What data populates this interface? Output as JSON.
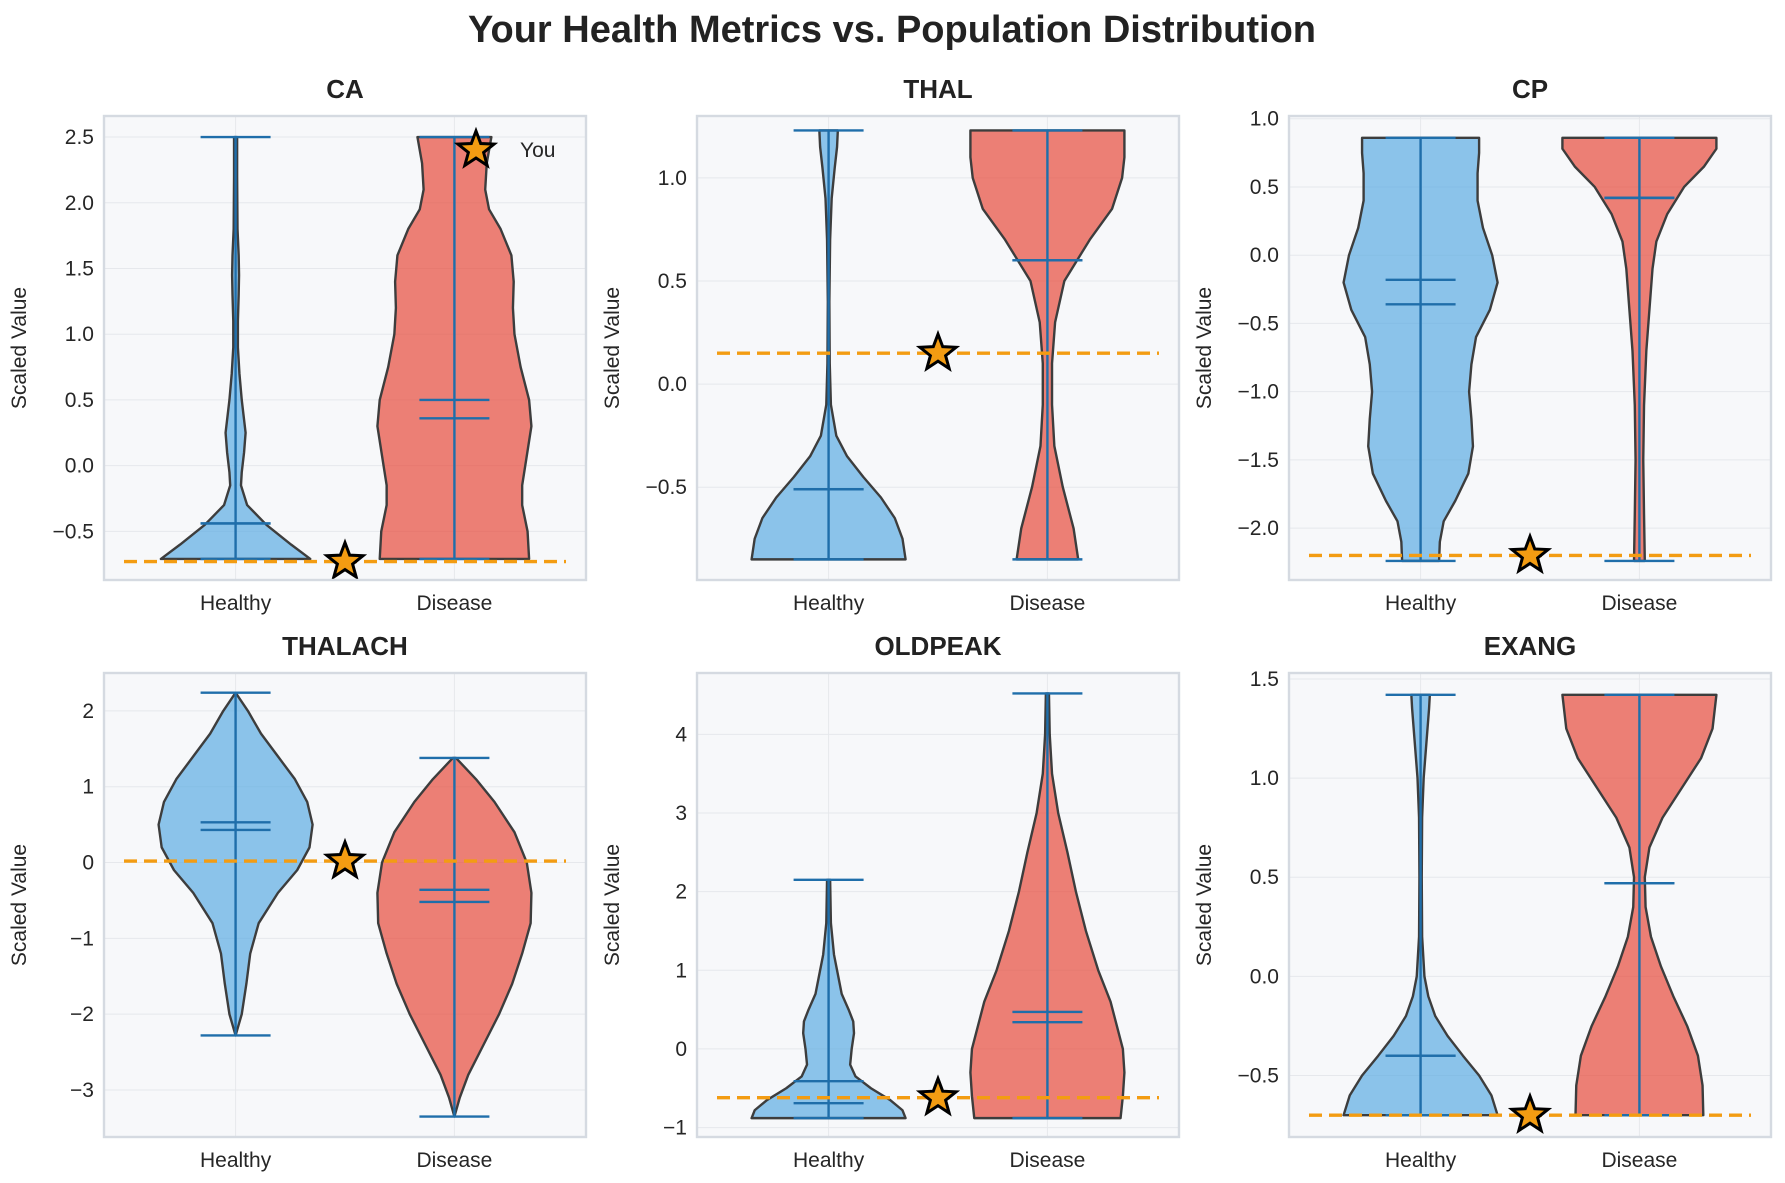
{
  "title": "Your Health Metrics vs. Population Distribution",
  "colors": {
    "healthy": "#5dade2",
    "disease": "#e74c3c",
    "stats_line": "#1f6eaa",
    "outline": "#3d3d3d",
    "marker": "#f39c12",
    "panel_bg": "#f7f8fa",
    "grid": "#e6e8ec",
    "spine": "#d5dae1"
  },
  "legend": {
    "label": "You",
    "icon": "star-icon"
  },
  "chart_data": [
    {
      "type": "violin",
      "title": "CA",
      "ylabel": "Scaled Value",
      "categories": [
        "Healthy",
        "Disease"
      ],
      "ylim": [
        -0.87,
        2.66
      ],
      "yticks": [
        -0.5,
        0.0,
        0.5,
        1.0,
        1.5,
        2.0,
        2.5
      ],
      "yticklabels": [
        "−0.5",
        "0.0",
        "0.5",
        "1.0",
        "1.5",
        "2.0",
        "2.5"
      ],
      "you": -0.73,
      "legend": true,
      "series": [
        {
          "name": "Healthy",
          "min": -0.71,
          "max": 2.5,
          "mean": -0.44,
          "median": -0.44,
          "density": [
            [
              -0.71,
              0.97
            ],
            [
              -0.6,
              0.72
            ],
            [
              -0.45,
              0.4
            ],
            [
              -0.3,
              0.15
            ],
            [
              -0.15,
              0.07
            ],
            [
              -0.05,
              0.08
            ],
            [
              0.1,
              0.11
            ],
            [
              0.25,
              0.13
            ],
            [
              0.35,
              0.11
            ],
            [
              0.5,
              0.08
            ],
            [
              0.7,
              0.05
            ],
            [
              0.9,
              0.03
            ],
            [
              1.1,
              0.03
            ],
            [
              1.3,
              0.04
            ],
            [
              1.45,
              0.045
            ],
            [
              1.6,
              0.04
            ],
            [
              1.8,
              0.025
            ],
            [
              2.2,
              0.02
            ],
            [
              2.5,
              0.02
            ]
          ]
        },
        {
          "name": "Disease",
          "min": -0.71,
          "max": 2.5,
          "mean": 0.5,
          "median": 0.36,
          "density": [
            [
              -0.71,
              0.97
            ],
            [
              -0.5,
              0.95
            ],
            [
              -0.3,
              0.88
            ],
            [
              -0.15,
              0.88
            ],
            [
              0.0,
              0.92
            ],
            [
              0.15,
              0.96
            ],
            [
              0.3,
              1.0
            ],
            [
              0.5,
              0.97
            ],
            [
              0.75,
              0.86
            ],
            [
              1.0,
              0.78
            ],
            [
              1.2,
              0.76
            ],
            [
              1.4,
              0.77
            ],
            [
              1.6,
              0.74
            ],
            [
              1.8,
              0.6
            ],
            [
              1.95,
              0.45
            ],
            [
              2.1,
              0.4
            ],
            [
              2.3,
              0.42
            ],
            [
              2.5,
              0.48
            ]
          ]
        }
      ]
    },
    {
      "type": "violin",
      "title": "THAL",
      "ylabel": "Scaled Value",
      "categories": [
        "Healthy",
        "Disease"
      ],
      "ylim": [
        -0.95,
        1.3
      ],
      "yticks": [
        -0.5,
        0.0,
        0.5,
        1.0
      ],
      "yticklabels": [
        "−0.5",
        "0.0",
        "0.5",
        "1.0"
      ],
      "you": 0.15,
      "legend": false,
      "series": [
        {
          "name": "Healthy",
          "min": -0.85,
          "max": 1.23,
          "mean": -0.51,
          "median": -0.51,
          "density": [
            [
              -0.85,
              1.0
            ],
            [
              -0.75,
              0.96
            ],
            [
              -0.65,
              0.86
            ],
            [
              -0.55,
              0.68
            ],
            [
              -0.45,
              0.45
            ],
            [
              -0.35,
              0.24
            ],
            [
              -0.25,
              0.1
            ],
            [
              -0.1,
              0.03
            ],
            [
              0.1,
              0.015
            ],
            [
              0.4,
              0.01
            ],
            [
              0.7,
              0.02
            ],
            [
              0.9,
              0.04
            ],
            [
              1.05,
              0.08
            ],
            [
              1.15,
              0.11
            ],
            [
              1.23,
              0.12
            ]
          ]
        },
        {
          "name": "Disease",
          "min": -0.85,
          "max": 1.23,
          "mean": 0.6,
          "median": 0.6,
          "density": [
            [
              -0.85,
              0.4
            ],
            [
              -0.7,
              0.34
            ],
            [
              -0.5,
              0.2
            ],
            [
              -0.3,
              0.09
            ],
            [
              -0.1,
              0.06
            ],
            [
              0.1,
              0.06
            ],
            [
              0.3,
              0.1
            ],
            [
              0.5,
              0.22
            ],
            [
              0.7,
              0.55
            ],
            [
              0.85,
              0.84
            ],
            [
              1.0,
              0.97
            ],
            [
              1.1,
              1.0
            ],
            [
              1.23,
              1.0
            ]
          ]
        }
      ]
    },
    {
      "type": "violin",
      "title": "CP",
      "ylabel": "Scaled Value",
      "categories": [
        "Healthy",
        "Disease"
      ],
      "ylim": [
        -2.38,
        1.02
      ],
      "yticks": [
        -2.0,
        -1.5,
        -1.0,
        -0.5,
        0.0,
        0.5,
        1.0
      ],
      "yticklabels": [
        "−2.0",
        "−1.5",
        "−1.0",
        "−0.5",
        "0.0",
        "0.5",
        "1.0"
      ],
      "you": -2.2,
      "legend": false,
      "series": [
        {
          "name": "Healthy",
          "min": -2.24,
          "max": 0.86,
          "mean": -0.18,
          "median": -0.36,
          "density": [
            [
              -2.24,
              0.24
            ],
            [
              -2.1,
              0.25
            ],
            [
              -1.95,
              0.3
            ],
            [
              -1.8,
              0.45
            ],
            [
              -1.6,
              0.62
            ],
            [
              -1.4,
              0.68
            ],
            [
              -1.2,
              0.66
            ],
            [
              -1.0,
              0.63
            ],
            [
              -0.8,
              0.66
            ],
            [
              -0.6,
              0.72
            ],
            [
              -0.4,
              0.9
            ],
            [
              -0.2,
              1.0
            ],
            [
              0.0,
              0.93
            ],
            [
              0.2,
              0.81
            ],
            [
              0.4,
              0.74
            ],
            [
              0.6,
              0.74
            ],
            [
              0.75,
              0.76
            ],
            [
              0.86,
              0.76
            ]
          ]
        },
        {
          "name": "Disease",
          "min": -2.24,
          "max": 0.86,
          "mean": 0.42,
          "median": 0.42,
          "density": [
            [
              -2.24,
              0.07
            ],
            [
              -1.9,
              0.06
            ],
            [
              -1.5,
              0.05
            ],
            [
              -1.1,
              0.06
            ],
            [
              -0.7,
              0.09
            ],
            [
              -0.4,
              0.13
            ],
            [
              -0.1,
              0.17
            ],
            [
              0.1,
              0.22
            ],
            [
              0.3,
              0.36
            ],
            [
              0.5,
              0.58
            ],
            [
              0.65,
              0.84
            ],
            [
              0.78,
              1.0
            ],
            [
              0.86,
              1.0
            ]
          ]
        }
      ]
    },
    {
      "type": "violin",
      "title": "THALACH",
      "ylabel": "Scaled Value",
      "categories": [
        "Healthy",
        "Disease"
      ],
      "ylim": [
        -3.62,
        2.5
      ],
      "yticks": [
        -3,
        -2,
        -1,
        0,
        1,
        2
      ],
      "yticklabels": [
        "−3",
        "−2",
        "−1",
        "0",
        "1",
        "2"
      ],
      "you": 0.02,
      "legend": false,
      "series": [
        {
          "name": "Healthy",
          "min": -2.28,
          "max": 2.24,
          "mean": 0.53,
          "median": 0.43,
          "density": [
            [
              -2.28,
              0.0
            ],
            [
              -2.0,
              0.08
            ],
            [
              -1.6,
              0.14
            ],
            [
              -1.2,
              0.19
            ],
            [
              -0.8,
              0.3
            ],
            [
              -0.4,
              0.55
            ],
            [
              -0.1,
              0.8
            ],
            [
              0.2,
              0.96
            ],
            [
              0.5,
              1.0
            ],
            [
              0.8,
              0.93
            ],
            [
              1.1,
              0.77
            ],
            [
              1.4,
              0.55
            ],
            [
              1.7,
              0.33
            ],
            [
              2.0,
              0.16
            ],
            [
              2.24,
              0.0
            ]
          ]
        },
        {
          "name": "Disease",
          "min": -3.35,
          "max": 1.38,
          "mean": -0.36,
          "median": -0.52,
          "density": [
            [
              -3.35,
              0.0
            ],
            [
              -3.1,
              0.07
            ],
            [
              -2.8,
              0.18
            ],
            [
              -2.4,
              0.38
            ],
            [
              -2.0,
              0.58
            ],
            [
              -1.6,
              0.75
            ],
            [
              -1.2,
              0.88
            ],
            [
              -0.8,
              0.99
            ],
            [
              -0.4,
              1.0
            ],
            [
              0.0,
              0.94
            ],
            [
              0.4,
              0.78
            ],
            [
              0.8,
              0.52
            ],
            [
              1.1,
              0.28
            ],
            [
              1.38,
              0.02
            ]
          ]
        }
      ]
    },
    {
      "type": "violin",
      "title": "OLDPEAK",
      "ylabel": "Scaled Value",
      "categories": [
        "Healthy",
        "Disease"
      ],
      "ylim": [
        -1.12,
        4.78
      ],
      "yticks": [
        -1,
        0,
        1,
        2,
        3,
        4
      ],
      "yticklabels": [
        "−1",
        "0",
        "1",
        "2",
        "3",
        "4"
      ],
      "you": -0.62,
      "legend": false,
      "series": [
        {
          "name": "Healthy",
          "min": -0.88,
          "max": 2.15,
          "mean": -0.41,
          "median": -0.69,
          "density": [
            [
              -0.88,
              1.0
            ],
            [
              -0.78,
              0.96
            ],
            [
              -0.65,
              0.8
            ],
            [
              -0.5,
              0.55
            ],
            [
              -0.35,
              0.35
            ],
            [
              -0.2,
              0.28
            ],
            [
              0.0,
              0.3
            ],
            [
              0.2,
              0.33
            ],
            [
              0.35,
              0.32
            ],
            [
              0.5,
              0.26
            ],
            [
              0.7,
              0.17
            ],
            [
              0.9,
              0.13
            ],
            [
              1.2,
              0.07
            ],
            [
              1.6,
              0.03
            ],
            [
              2.15,
              0.02
            ]
          ]
        },
        {
          "name": "Disease",
          "min": -0.88,
          "max": 4.52,
          "mean": 0.47,
          "median": 0.34,
          "density": [
            [
              -0.88,
              0.95
            ],
            [
              -0.6,
              0.98
            ],
            [
              -0.3,
              1.0
            ],
            [
              0.0,
              0.98
            ],
            [
              0.3,
              0.9
            ],
            [
              0.6,
              0.82
            ],
            [
              1.0,
              0.66
            ],
            [
              1.5,
              0.5
            ],
            [
              2.0,
              0.37
            ],
            [
              2.5,
              0.26
            ],
            [
              3.0,
              0.14
            ],
            [
              3.5,
              0.06
            ],
            [
              4.0,
              0.03
            ],
            [
              4.52,
              0.02
            ]
          ]
        }
      ]
    },
    {
      "type": "violin",
      "title": "EXANG",
      "ylabel": "Scaled Value",
      "categories": [
        "Healthy",
        "Disease"
      ],
      "ylim": [
        -0.81,
        1.53
      ],
      "yticks": [
        -0.5,
        0.0,
        0.5,
        1.0,
        1.5
      ],
      "yticklabels": [
        "−0.5",
        "0.0",
        "0.5",
        "1.0",
        "1.5"
      ],
      "you": -0.7,
      "legend": false,
      "series": [
        {
          "name": "Healthy",
          "min": -0.7,
          "max": 1.42,
          "mean": -0.4,
          "median": -0.4,
          "density": [
            [
              -0.7,
              1.0
            ],
            [
              -0.6,
              0.92
            ],
            [
              -0.5,
              0.76
            ],
            [
              -0.4,
              0.55
            ],
            [
              -0.3,
              0.35
            ],
            [
              -0.2,
              0.19
            ],
            [
              -0.1,
              0.1
            ],
            [
              0.0,
              0.05
            ],
            [
              0.2,
              0.02
            ],
            [
              0.5,
              0.015
            ],
            [
              0.8,
              0.02
            ],
            [
              1.0,
              0.04
            ],
            [
              1.2,
              0.08
            ],
            [
              1.35,
              0.11
            ],
            [
              1.42,
              0.12
            ]
          ]
        },
        {
          "name": "Disease",
          "min": -0.7,
          "max": 1.42,
          "mean": 0.47,
          "median": 0.47,
          "density": [
            [
              -0.7,
              0.83
            ],
            [
              -0.55,
              0.82
            ],
            [
              -0.4,
              0.76
            ],
            [
              -0.25,
              0.62
            ],
            [
              -0.1,
              0.44
            ],
            [
              0.05,
              0.28
            ],
            [
              0.2,
              0.15
            ],
            [
              0.35,
              0.08
            ],
            [
              0.5,
              0.07
            ],
            [
              0.65,
              0.13
            ],
            [
              0.8,
              0.3
            ],
            [
              0.95,
              0.55
            ],
            [
              1.1,
              0.8
            ],
            [
              1.25,
              0.95
            ],
            [
              1.42,
              1.0
            ]
          ]
        }
      ]
    }
  ]
}
